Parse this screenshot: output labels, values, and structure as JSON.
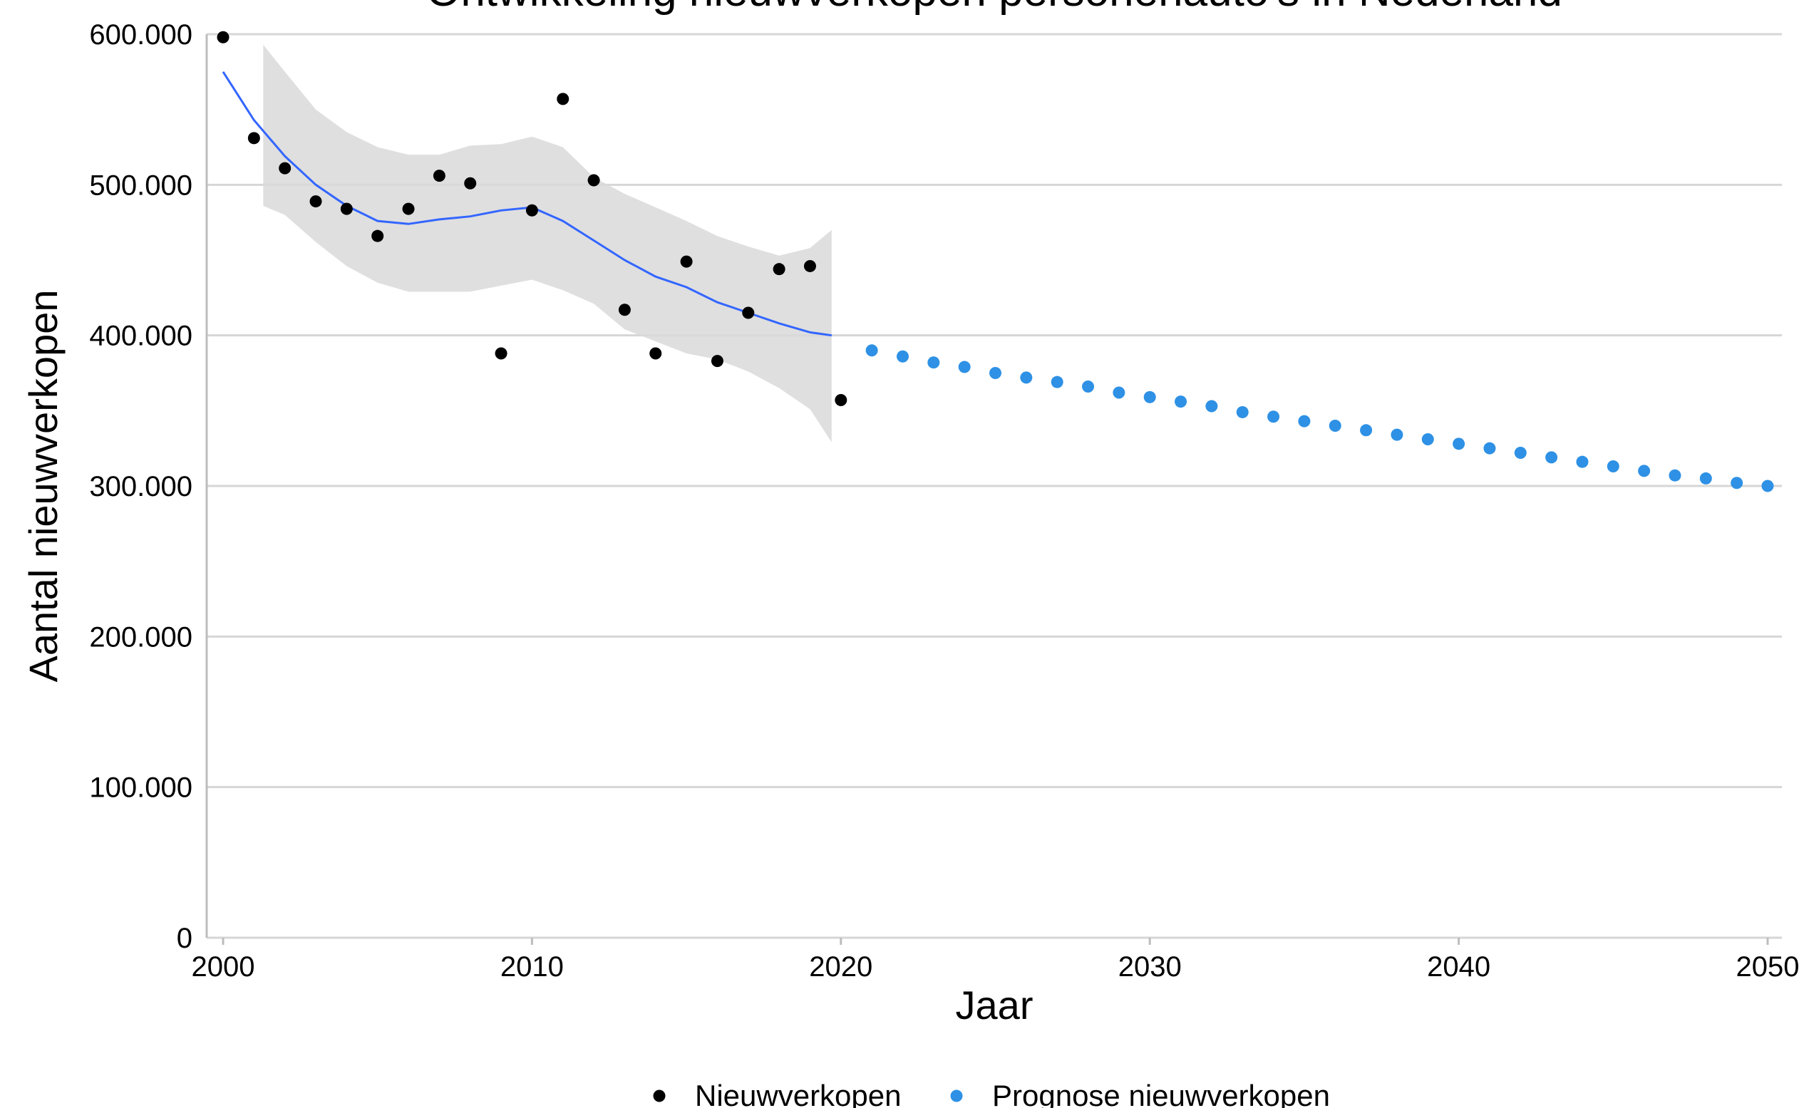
{
  "chart_data": {
    "type": "scatter",
    "title": "Ontwikkeling nieuwverkopen personenauto's in Nederland",
    "xlabel": "Jaar",
    "ylabel": "Aantal nieuwverkopen",
    "xlim": [
      2000,
      2050
    ],
    "ylim": [
      0,
      600000
    ],
    "x_ticks": [
      2000,
      2010,
      2020,
      2030,
      2040,
      2050
    ],
    "x_tick_labels": [
      "2000",
      "2010",
      "2020",
      "2030",
      "2040",
      "2050"
    ],
    "y_ticks": [
      0,
      100000,
      200000,
      300000,
      400000,
      500000,
      600000
    ],
    "y_tick_labels": [
      "0",
      "100.000",
      "200.000",
      "300.000",
      "400.000",
      "500.000",
      "600.000"
    ],
    "grid": "horizontal",
    "legend_position": "bottom",
    "series": [
      {
        "name": "Nieuwverkopen",
        "color": "#000000",
        "x": [
          2000,
          2001,
          2002,
          2003,
          2004,
          2005,
          2006,
          2007,
          2008,
          2009,
          2010,
          2011,
          2012,
          2013,
          2014,
          2015,
          2016,
          2017,
          2018,
          2019,
          2020
        ],
        "y": [
          598000,
          531000,
          511000,
          489000,
          484000,
          466000,
          484000,
          506000,
          501000,
          388000,
          483000,
          557000,
          503000,
          417000,
          388000,
          449000,
          383000,
          415000,
          444000,
          446000,
          357000
        ]
      },
      {
        "name": "Prognose nieuwverkopen",
        "color": "#2E91E5",
        "x": [
          2021,
          2022,
          2023,
          2024,
          2025,
          2026,
          2027,
          2028,
          2029,
          2030,
          2031,
          2032,
          2033,
          2034,
          2035,
          2036,
          2037,
          2038,
          2039,
          2040,
          2041,
          2042,
          2043,
          2044,
          2045,
          2046,
          2047,
          2048,
          2049,
          2050
        ],
        "y": [
          390000,
          386000,
          382000,
          379000,
          375000,
          372000,
          369000,
          366000,
          362000,
          359000,
          356000,
          353000,
          349000,
          346000,
          343000,
          340000,
          337000,
          334000,
          331000,
          328000,
          325000,
          322000,
          319000,
          316000,
          313000,
          310000,
          307000,
          305000,
          302000,
          300000
        ]
      }
    ],
    "smooth": {
      "color": "#3366FF",
      "band_color": "#D9D9D9",
      "x": [
        2000,
        2001,
        2002,
        2003,
        2004,
        2005,
        2006,
        2007,
        2008,
        2009,
        2010,
        2011,
        2012,
        2013,
        2014,
        2015,
        2016,
        2017,
        2018,
        2019,
        2019.7
      ],
      "y": [
        575000,
        543000,
        519000,
        500000,
        486000,
        476000,
        474000,
        477000,
        479000,
        483000,
        485000,
        476000,
        463000,
        450000,
        439000,
        432000,
        422000,
        415000,
        408000,
        402000,
        400000
      ],
      "band_x": [
        2001.3,
        2002,
        2003,
        2004,
        2005,
        2006,
        2007,
        2008,
        2009,
        2010,
        2011,
        2012,
        2013,
        2014,
        2015,
        2016,
        2017,
        2018,
        2019,
        2019.7
      ],
      "band_upper": [
        593000,
        575000,
        550000,
        535000,
        525000,
        520000,
        520000,
        526000,
        527000,
        532000,
        525000,
        505000,
        494000,
        485000,
        476000,
        466000,
        459000,
        453000,
        458000,
        470000
      ],
      "band_lower": [
        486000,
        480000,
        462000,
        446000,
        435000,
        429000,
        429000,
        429000,
        433000,
        437000,
        430000,
        421000,
        404000,
        396000,
        388000,
        384000,
        376000,
        365000,
        351000,
        329000
      ]
    }
  }
}
